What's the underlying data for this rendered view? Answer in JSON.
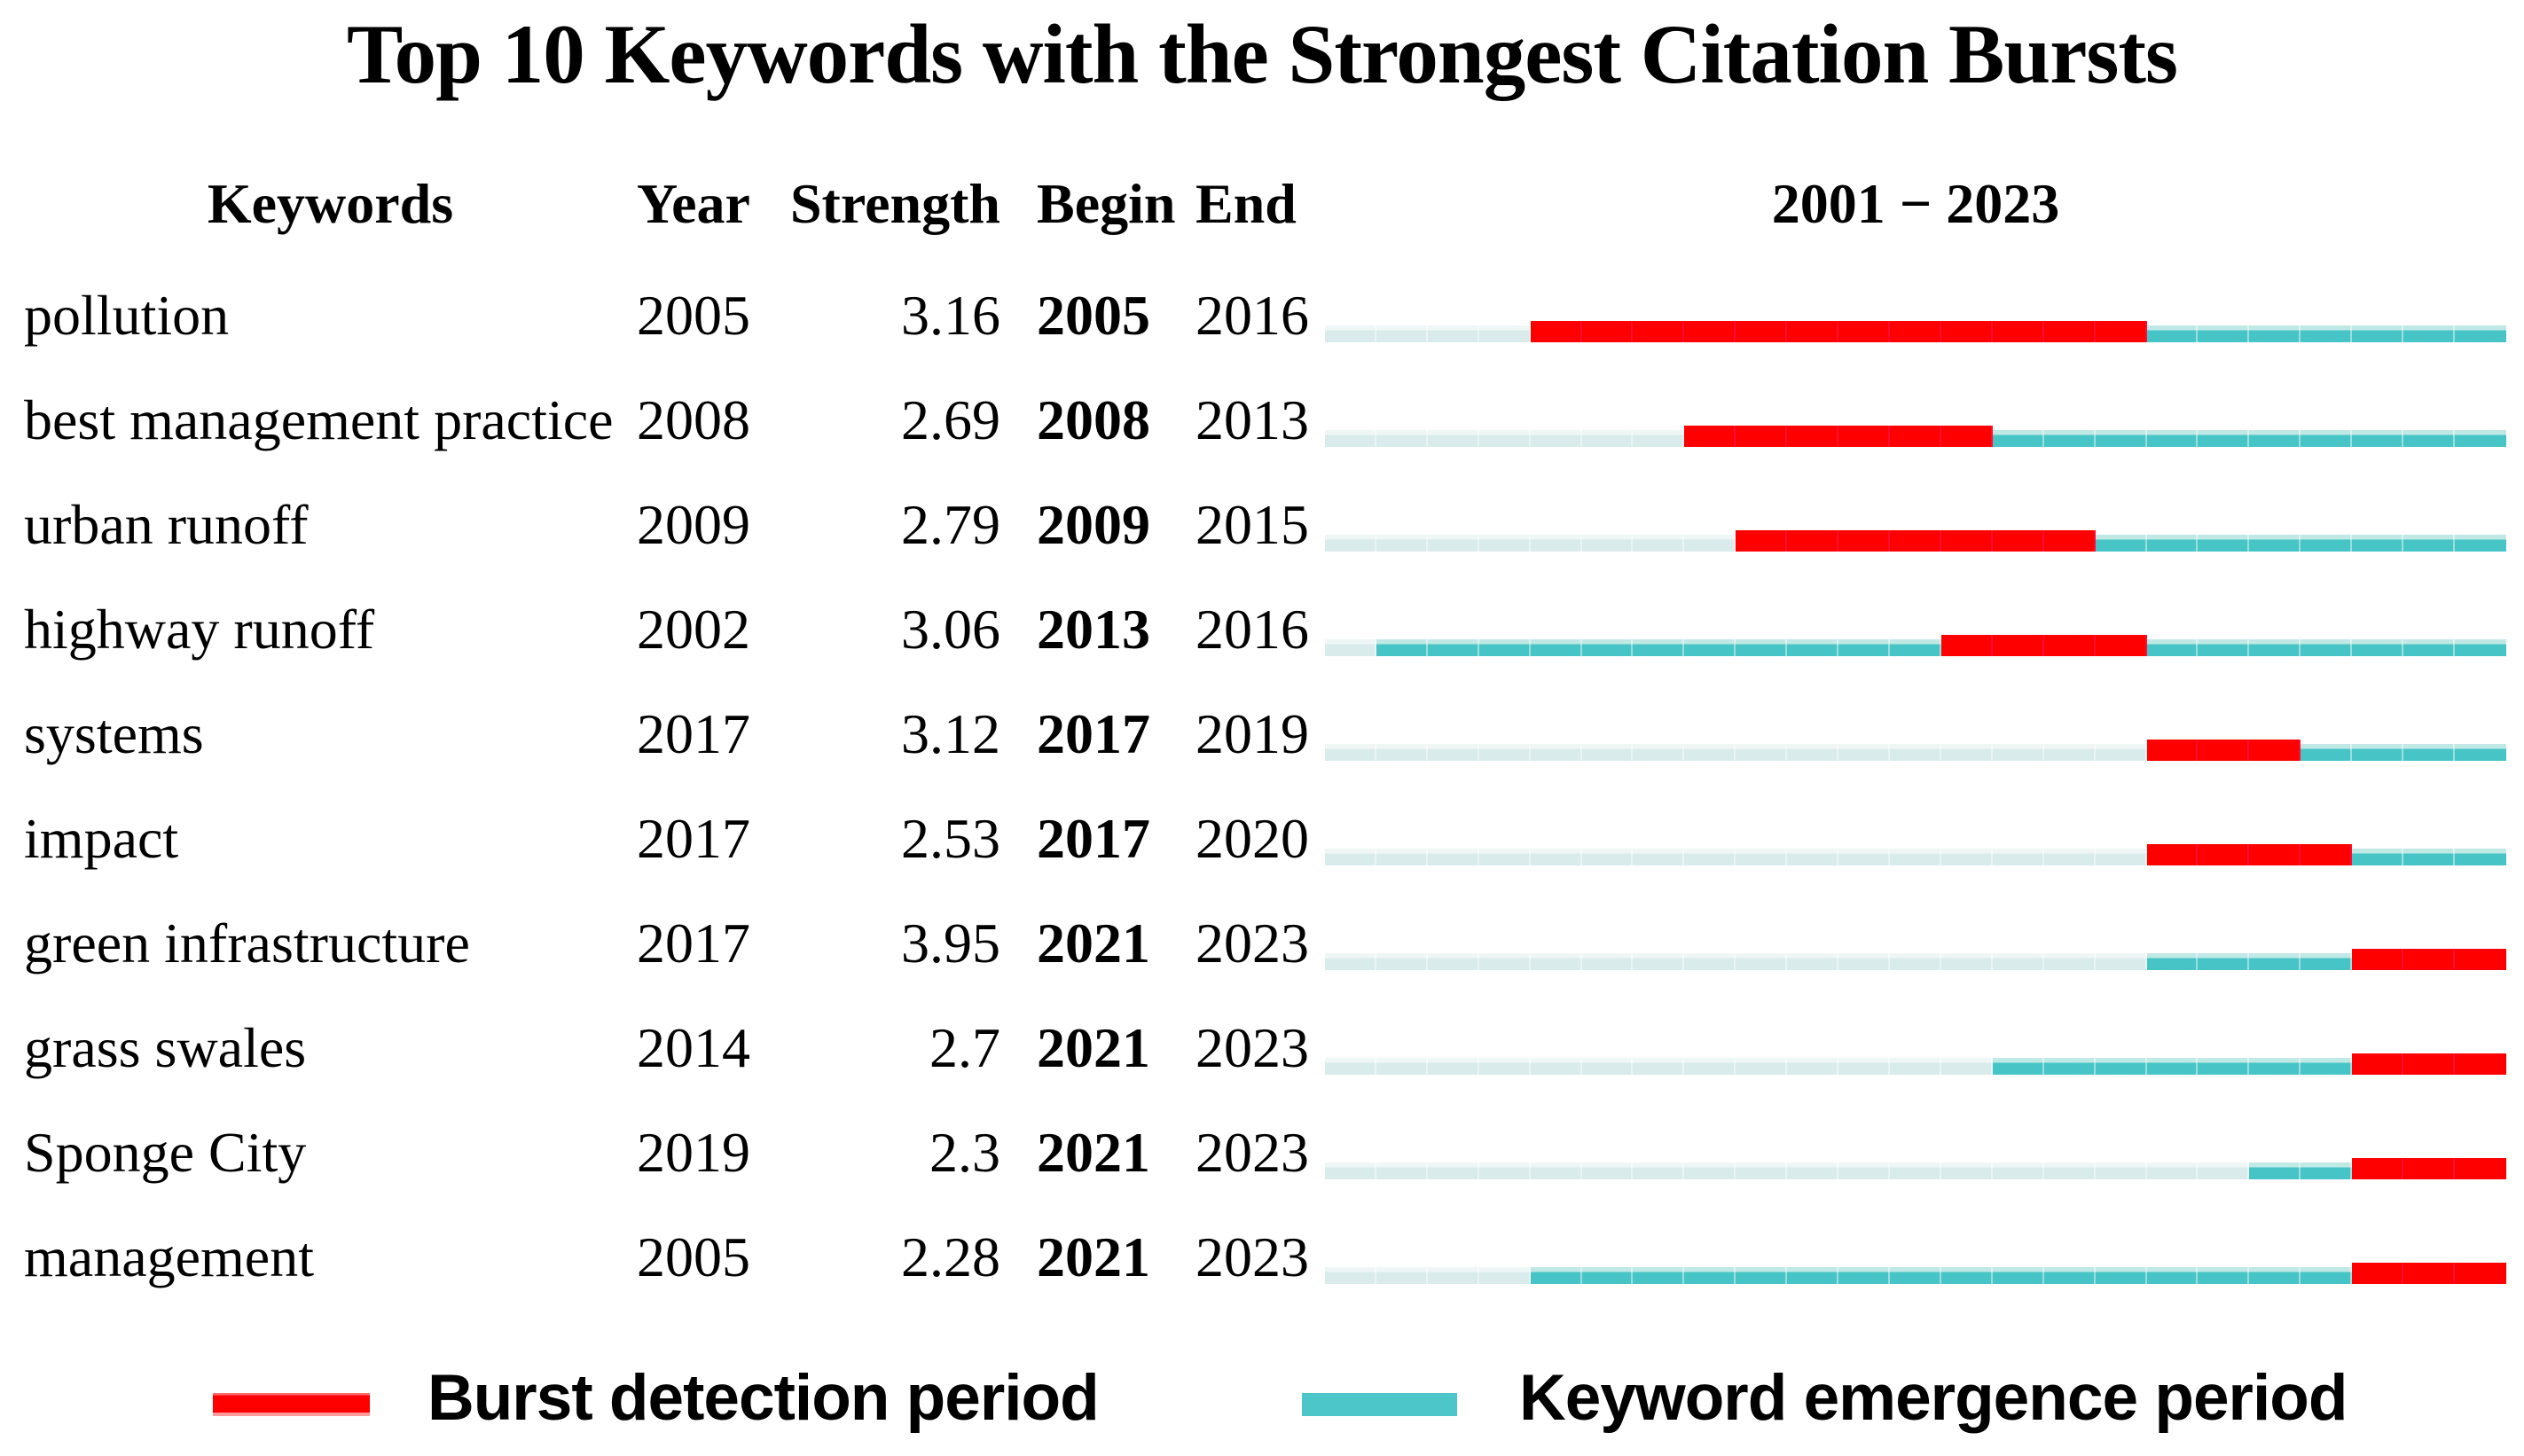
{
  "title": "Top 10 Keywords with the Strongest Citation Bursts",
  "header": {
    "keywords": "Keywords",
    "year": "Year",
    "strength": "Strength",
    "begin": "Begin",
    "end": "End",
    "timeline": "2001 − 2023"
  },
  "legend": {
    "burst": {
      "label": "Burst detection period",
      "color": "#fe0000"
    },
    "emergence": {
      "label": "Keyword emergence period",
      "color": "#4cc6c8"
    }
  },
  "colors": {
    "burst": "#fe0000",
    "burst_separator": "rgba(255,20,85,0.6)",
    "emergence": "#47c5c6",
    "emergence_top": "#c0e9e6",
    "pre_emergence": "#d9ebeb",
    "pre_emergence_top": "#eef7f6",
    "separator": "rgba(255,255,255,0.45)",
    "text": "#000000"
  },
  "chart_data": {
    "type": "table",
    "title": "Top 10 Keywords with the Strongest Citation Bursts",
    "timeline": {
      "label": "2001 − 2023",
      "start": 2001,
      "end": 2023
    },
    "columns": [
      "Keywords",
      "Year",
      "Strength",
      "Begin",
      "End"
    ],
    "legend_entries": [
      "Burst detection period",
      "Keyword emergence period"
    ],
    "rows": [
      {
        "keyword": "pollution",
        "year": 2005,
        "strength": "3.16",
        "begin": 2005,
        "end": 2016
      },
      {
        "keyword": "best management practice",
        "year": 2008,
        "strength": "2.69",
        "begin": 2008,
        "end": 2013
      },
      {
        "keyword": "urban runoff",
        "year": 2009,
        "strength": "2.79",
        "begin": 2009,
        "end": 2015
      },
      {
        "keyword": "highway runoff",
        "year": 2002,
        "strength": "3.06",
        "begin": 2013,
        "end": 2016
      },
      {
        "keyword": "systems",
        "year": 2017,
        "strength": "3.12",
        "begin": 2017,
        "end": 2019
      },
      {
        "keyword": "impact",
        "year": 2017,
        "strength": "2.53",
        "begin": 2017,
        "end": 2020
      },
      {
        "keyword": "green infrastructure",
        "year": 2017,
        "strength": "3.95",
        "begin": 2021,
        "end": 2023
      },
      {
        "keyword": "grass swales",
        "year": 2014,
        "strength": "2.7",
        "begin": 2021,
        "end": 2023
      },
      {
        "keyword": "Sponge City",
        "year": 2019,
        "strength": "2.3",
        "begin": 2021,
        "end": 2023
      },
      {
        "keyword": "management",
        "year": 2005,
        "strength": "2.28",
        "begin": 2021,
        "end": 2023
      }
    ]
  }
}
